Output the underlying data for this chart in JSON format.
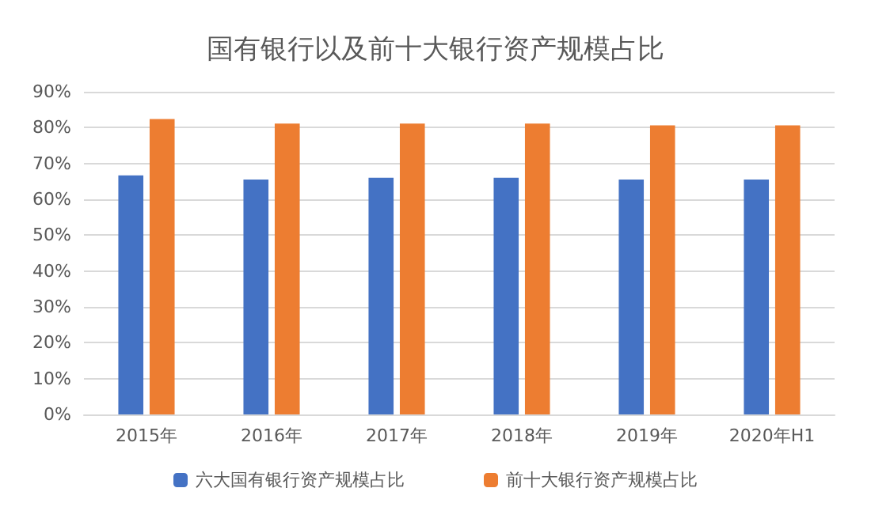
{
  "chart_data": {
    "type": "bar",
    "title": "国有银行以及前十大银行资产规模占比",
    "categories": [
      "2015年",
      "2016年",
      "2017年",
      "2018年",
      "2019年",
      "2020年H1"
    ],
    "series": [
      {
        "name": "六大国有银行资产规模占比",
        "color": "#4472c4",
        "values": [
          66.7,
          65.5,
          66,
          66,
          65.5,
          65.5
        ]
      },
      {
        "name": "前十大银行资产规模占比",
        "color": "#ed7d31",
        "values": [
          82.4,
          81.1,
          81.1,
          81.1,
          80.6,
          80.6
        ]
      }
    ],
    "ylim": [
      0,
      90
    ],
    "yticks": [
      {
        "value": 0,
        "label": "0%"
      },
      {
        "value": 10,
        "label": "10%"
      },
      {
        "value": 20,
        "label": "20%"
      },
      {
        "value": 30,
        "label": "30%"
      },
      {
        "value": 40,
        "label": "40%"
      },
      {
        "value": 50,
        "label": "50%"
      },
      {
        "value": 60,
        "label": "60%"
      },
      {
        "value": 70,
        "label": "70%"
      },
      {
        "value": 80,
        "label": "80%"
      },
      {
        "value": 90,
        "label": "90%"
      }
    ],
    "grid": "y",
    "legend": "bottom"
  }
}
